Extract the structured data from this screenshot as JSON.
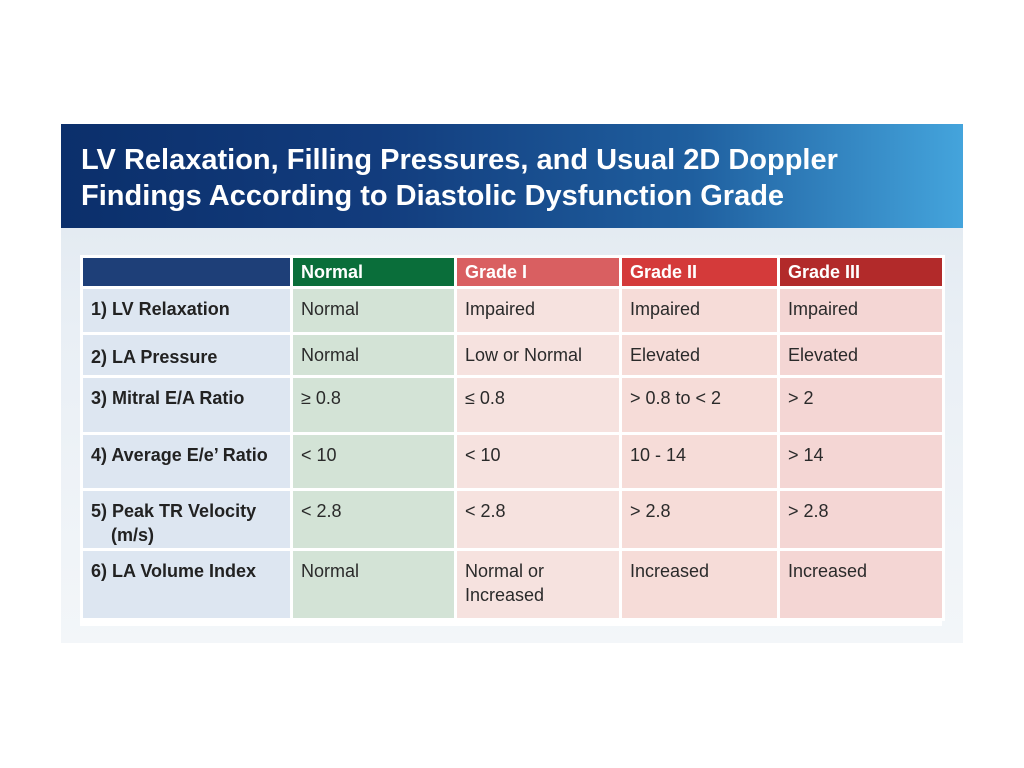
{
  "title": {
    "line1": "LV Relaxation, Filling Pressures, and Usual 2D Doppler",
    "line2": "Findings According to Diastolic Dysfunction Grade"
  },
  "colors": {
    "header_blank": "#1e3f78",
    "header_normal": "#0a6e3a",
    "header_grade1": "#d95f61",
    "header_grade2": "#d43a3a",
    "header_grade3": "#b22a2a"
  },
  "table": {
    "headers": [
      "",
      "Normal",
      "Grade I",
      "Grade II",
      "Grade III"
    ],
    "rows": [
      {
        "label": "1) LV Relaxation",
        "label2": "",
        "values": [
          "Normal",
          "Impaired",
          "Impaired",
          "Impaired"
        ]
      },
      {
        "label": "2) LA Pressure",
        "label2": "",
        "values": [
          "Normal",
          "Low or Normal",
          "Elevated",
          "Elevated"
        ]
      },
      {
        "label": "3) Mitral E/A Ratio",
        "label2": "",
        "values": [
          "≥ 0.8",
          "≤ 0.8",
          "> 0.8 to < 2",
          "> 2"
        ]
      },
      {
        "label": "4) Average E/e’ Ratio",
        "label2": "",
        "values": [
          "< 10",
          "< 10",
          "10 - 14",
          "> 14"
        ]
      },
      {
        "label": "5) Peak TR Velocity",
        "label2": "(m/s)",
        "values": [
          "< 2.8",
          "< 2.8",
          "> 2.8",
          "> 2.8"
        ]
      },
      {
        "label": "6) LA Volume Index",
        "label2": "",
        "values": [
          "Normal",
          "Normal or Increased",
          "Increased",
          "Increased"
        ]
      }
    ]
  }
}
